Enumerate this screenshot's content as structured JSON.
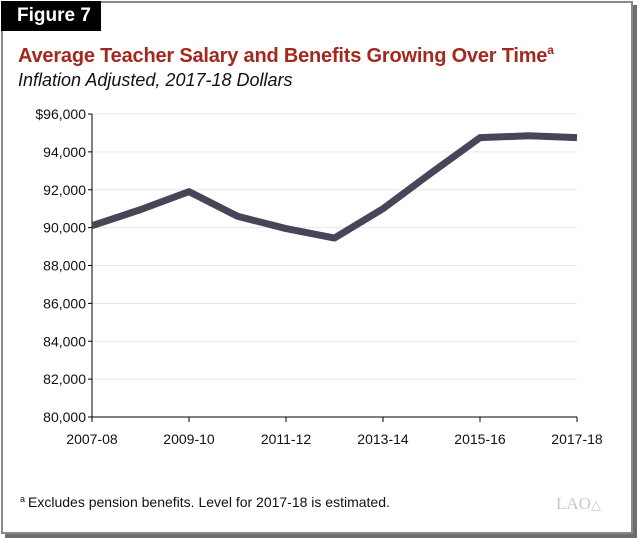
{
  "figure_label": "Figure 7",
  "title": "Average Teacher Salary and Benefits Growing Over Time",
  "title_superscript": "a",
  "subtitle": "Inflation Adjusted, 2017-18 Dollars",
  "footnote_marker": "a",
  "footnote": "Excludes pension benefits. Level for 2017-18 is estimated.",
  "logo": "LAO",
  "colors": {
    "title": "#a3291f",
    "line": "#474557",
    "grid": "#e6e6e6"
  },
  "chart_data": {
    "type": "line",
    "x": [
      "2007-08",
      "2008-09",
      "2009-10",
      "2010-11",
      "2011-12",
      "2012-13",
      "2013-14",
      "2014-15",
      "2015-16",
      "2016-17",
      "2017-18"
    ],
    "x_tick_labels": [
      "2007-08",
      "2009-10",
      "2011-12",
      "2013-14",
      "2015-16",
      "2017-18"
    ],
    "values": [
      90100,
      90950,
      91900,
      90600,
      89950,
      89450,
      91000,
      92900,
      94750,
      94850,
      94750
    ],
    "y_tick_labels": [
      "$96,000",
      "94,000",
      "92,000",
      "90,000",
      "88,000",
      "86,000",
      "84,000",
      "82,000",
      "80,000"
    ],
    "y_ticks": [
      96000,
      94000,
      92000,
      90000,
      88000,
      86000,
      84000,
      82000,
      80000
    ],
    "ylim": [
      80000,
      96000
    ],
    "grid": true,
    "xlabel": "",
    "ylabel": ""
  }
}
